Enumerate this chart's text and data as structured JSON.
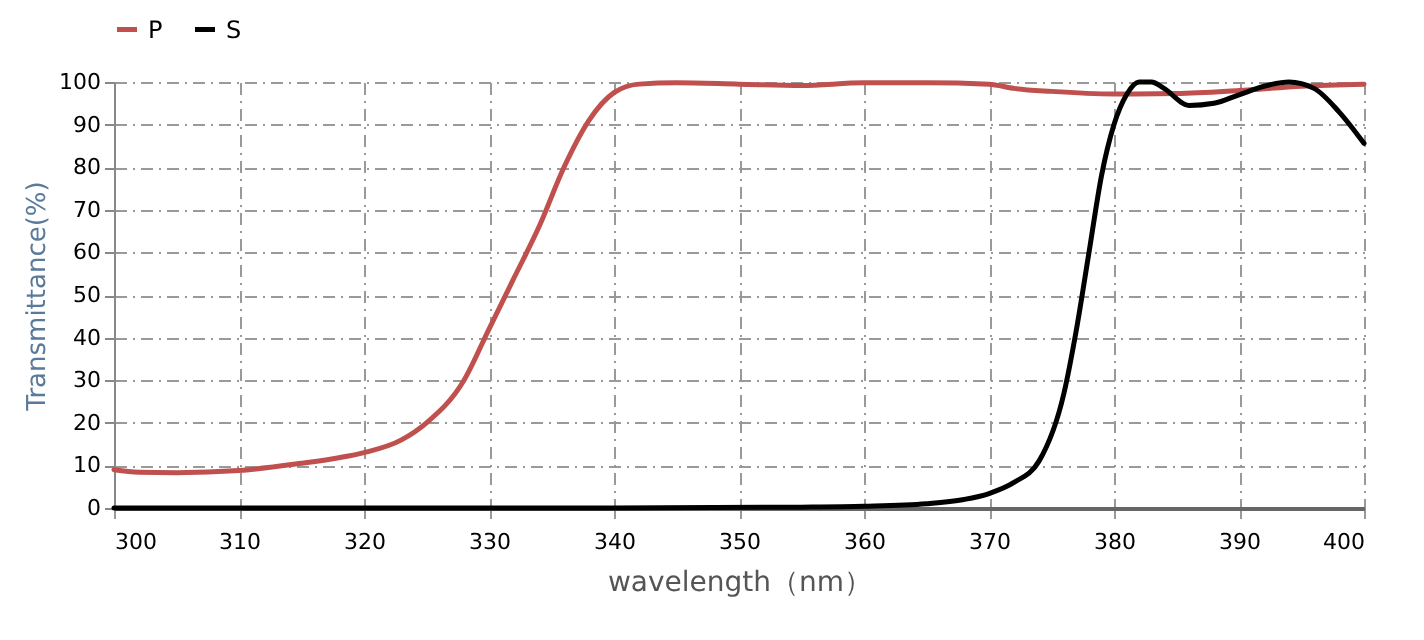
{
  "chart_data": {
    "type": "line",
    "xlabel": "wavelength（nm）",
    "ylabel": "Transmittance(%)",
    "xlim": [
      300,
      400
    ],
    "xticks": [
      300,
      310,
      320,
      330,
      340,
      350,
      360,
      370,
      380,
      390,
      400
    ],
    "ylim": [
      0,
      100
    ],
    "yticks": [
      0,
      10,
      20,
      30,
      40,
      50,
      60,
      70,
      80,
      90,
      100
    ],
    "grid": true,
    "legend": "top",
    "marker": "none",
    "line_style": "solid",
    "series": [
      {
        "name": "P",
        "color": "#c0504d",
        "x": [
          300,
          302,
          305,
          310,
          315,
          318,
          320,
          323,
          325,
          328,
          330,
          332,
          334,
          336,
          338,
          340,
          342,
          345,
          350,
          355,
          360,
          365,
          370,
          372,
          375,
          380,
          385,
          390,
          395,
          400
        ],
        "values": [
          9,
          8.4,
          8.3,
          8.8,
          10.5,
          11.8,
          13,
          16,
          20,
          30,
          42,
          54,
          66,
          80,
          91,
          97.5,
          99.5,
          99.8,
          99.5,
          99.2,
          99.8,
          99.8,
          99.5,
          98.5,
          97.8,
          97.2,
          97.3,
          98,
          99,
          99.5
        ]
      },
      {
        "name": "S",
        "color": "#000000",
        "x": [
          300,
          340,
          355,
          360,
          365,
          368,
          370,
          372,
          374,
          376,
          377,
          378,
          379,
          380,
          381,
          382,
          383,
          384,
          386,
          388,
          390,
          392,
          394,
          396,
          398,
          400
        ],
        "values": [
          0,
          0,
          0.2,
          0.4,
          1,
          2,
          3.4,
          6,
          11,
          27,
          42,
          60,
          78,
          90,
          97,
          100,
          100,
          98.5,
          94.5,
          95,
          97,
          99,
          100,
          98.5,
          93,
          85.6
        ]
      }
    ]
  }
}
